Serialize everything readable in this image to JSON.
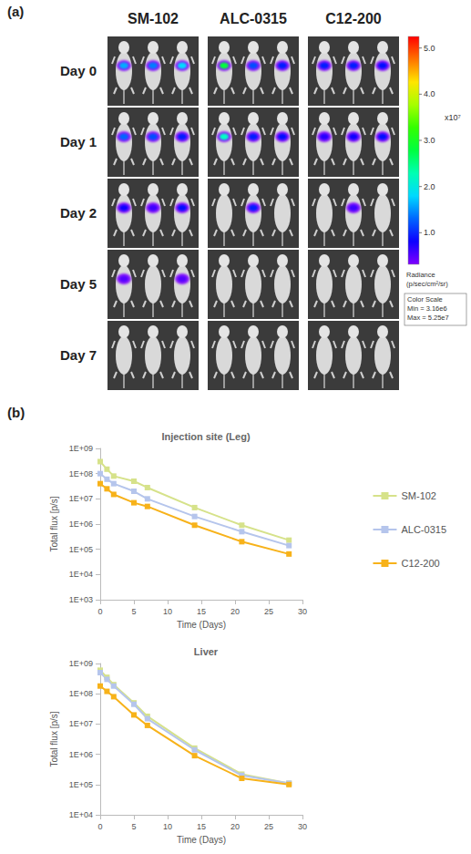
{
  "panel_a": {
    "label": "(a)",
    "groups": [
      "SM-102",
      "ALC-0315",
      "C12-200"
    ],
    "days": [
      "Day 0",
      "Day 1",
      "Day 2",
      "Day 5",
      "Day 7"
    ],
    "radiance": [
      [
        [
          1.6,
          1.4,
          1.8
        ],
        [
          1.3,
          1.2,
          1.0
        ],
        [
          0.8,
          0.6,
          0.9
        ],
        [
          0.5,
          null,
          0.5
        ],
        [
          null,
          null,
          null
        ]
      ],
      [
        [
          2.8,
          1.2,
          1.0
        ],
        [
          2.2,
          1.0,
          0.9
        ],
        [
          null,
          1.0,
          null
        ],
        [
          null,
          null,
          null
        ],
        [
          null,
          null,
          null
        ]
      ],
      [
        [
          1.0,
          1.0,
          0.9
        ],
        [
          0.7,
          0.8,
          0.9
        ],
        [
          null,
          0.6,
          null
        ],
        [
          null,
          null,
          null
        ],
        [
          null,
          null,
          null
        ]
      ]
    ],
    "colorbar": {
      "title": "Radiance (p/sec/cm²/sr)",
      "multiplier": "x10⁷",
      "range": [
        0.316,
        5.25
      ],
      "ticks": [
        {
          "value": 1,
          "label": "1.0"
        },
        {
          "value": 2,
          "label": "2.0"
        },
        {
          "value": 3,
          "label": "3.0"
        },
        {
          "value": 4,
          "label": "4.0"
        },
        {
          "value": 5,
          "label": "5.0"
        }
      ],
      "scale_box": [
        "Color Scale",
        "Min = 3.16e6",
        "Max = 5.25e7"
      ]
    }
  },
  "panel_b": {
    "label": "(b)"
  },
  "chart_data": [
    {
      "type": "line",
      "title": "Injection site (Leg)",
      "x_label": "Time (Days)",
      "y_label": "Total flux [p/s]",
      "x": [
        0,
        1,
        2,
        5,
        7,
        14,
        21,
        28
      ],
      "series": [
        {
          "name": "SM-102",
          "color": "#d6e28a",
          "marker": "square",
          "line_style": "solid",
          "values": [
            300000000,
            150000000,
            80000000,
            50000000,
            28000000,
            4500000,
            900000,
            230000
          ]
        },
        {
          "name": "ALC-0315",
          "color": "#b5c5ec",
          "marker": "square",
          "line_style": "solid",
          "values": [
            100000000,
            60000000,
            40000000,
            20000000,
            10000000,
            2000000,
            500000,
            140000
          ]
        },
        {
          "name": "C12-200",
          "color": "#f7b21a",
          "marker": "square",
          "line_style": "solid",
          "values": [
            40000000,
            25000000,
            15000000,
            7000000,
            5000000,
            900000,
            200000,
            65000
          ]
        }
      ],
      "xlim": [
        0,
        30
      ],
      "xticks": [
        0,
        5,
        10,
        15,
        20,
        25,
        30
      ],
      "ylim": [
        1000,
        1000000000
      ],
      "yticks": [
        {
          "value": 1000,
          "label": "1E+03"
        },
        {
          "value": 10000,
          "label": "1E+04"
        },
        {
          "value": 100000,
          "label": "1E+05"
        },
        {
          "value": 1000000,
          "label": "1E+06"
        },
        {
          "value": 10000000,
          "label": "1E+07"
        },
        {
          "value": 100000000,
          "label": "1E+08"
        },
        {
          "value": 1000000000,
          "label": "1E+09"
        }
      ],
      "log": "y",
      "grid": false,
      "legend": "right"
    },
    {
      "type": "line",
      "title": "Liver",
      "x_label": "Time (Days)",
      "y_label": "Total flux [p/s]",
      "x": [
        0,
        1,
        2,
        5,
        7,
        14,
        21,
        28
      ],
      "series": [
        {
          "name": "SM-102",
          "color": "#d6e28a",
          "marker": "square",
          "line_style": "solid",
          "values": [
            600000000,
            350000000,
            200000000,
            50000000,
            18000000,
            1600000,
            220000,
            110000
          ]
        },
        {
          "name": "ALC-0315",
          "color": "#b5c5ec",
          "marker": "square",
          "line_style": "solid",
          "values": [
            500000000,
            300000000,
            180000000,
            45000000,
            15000000,
            1400000,
            200000,
            110000
          ]
        },
        {
          "name": "C12-200",
          "color": "#f7b21a",
          "marker": "square",
          "line_style": "solid",
          "values": [
            180000000,
            120000000,
            80000000,
            20000000,
            9000000,
            900000,
            160000,
            100000
          ]
        }
      ],
      "xlim": [
        0,
        30
      ],
      "xticks": [
        0,
        5,
        10,
        15,
        20,
        25,
        30
      ],
      "ylim": [
        10000,
        1000000000
      ],
      "yticks": [
        {
          "value": 10000,
          "label": "1E+04"
        },
        {
          "value": 100000,
          "label": "1E+05"
        },
        {
          "value": 1000000,
          "label": "1E+06"
        },
        {
          "value": 10000000,
          "label": "1E+07"
        },
        {
          "value": 100000000,
          "label": "1E+08"
        },
        {
          "value": 1000000000,
          "label": "1E+09"
        }
      ],
      "log": "y",
      "grid": false
    }
  ]
}
